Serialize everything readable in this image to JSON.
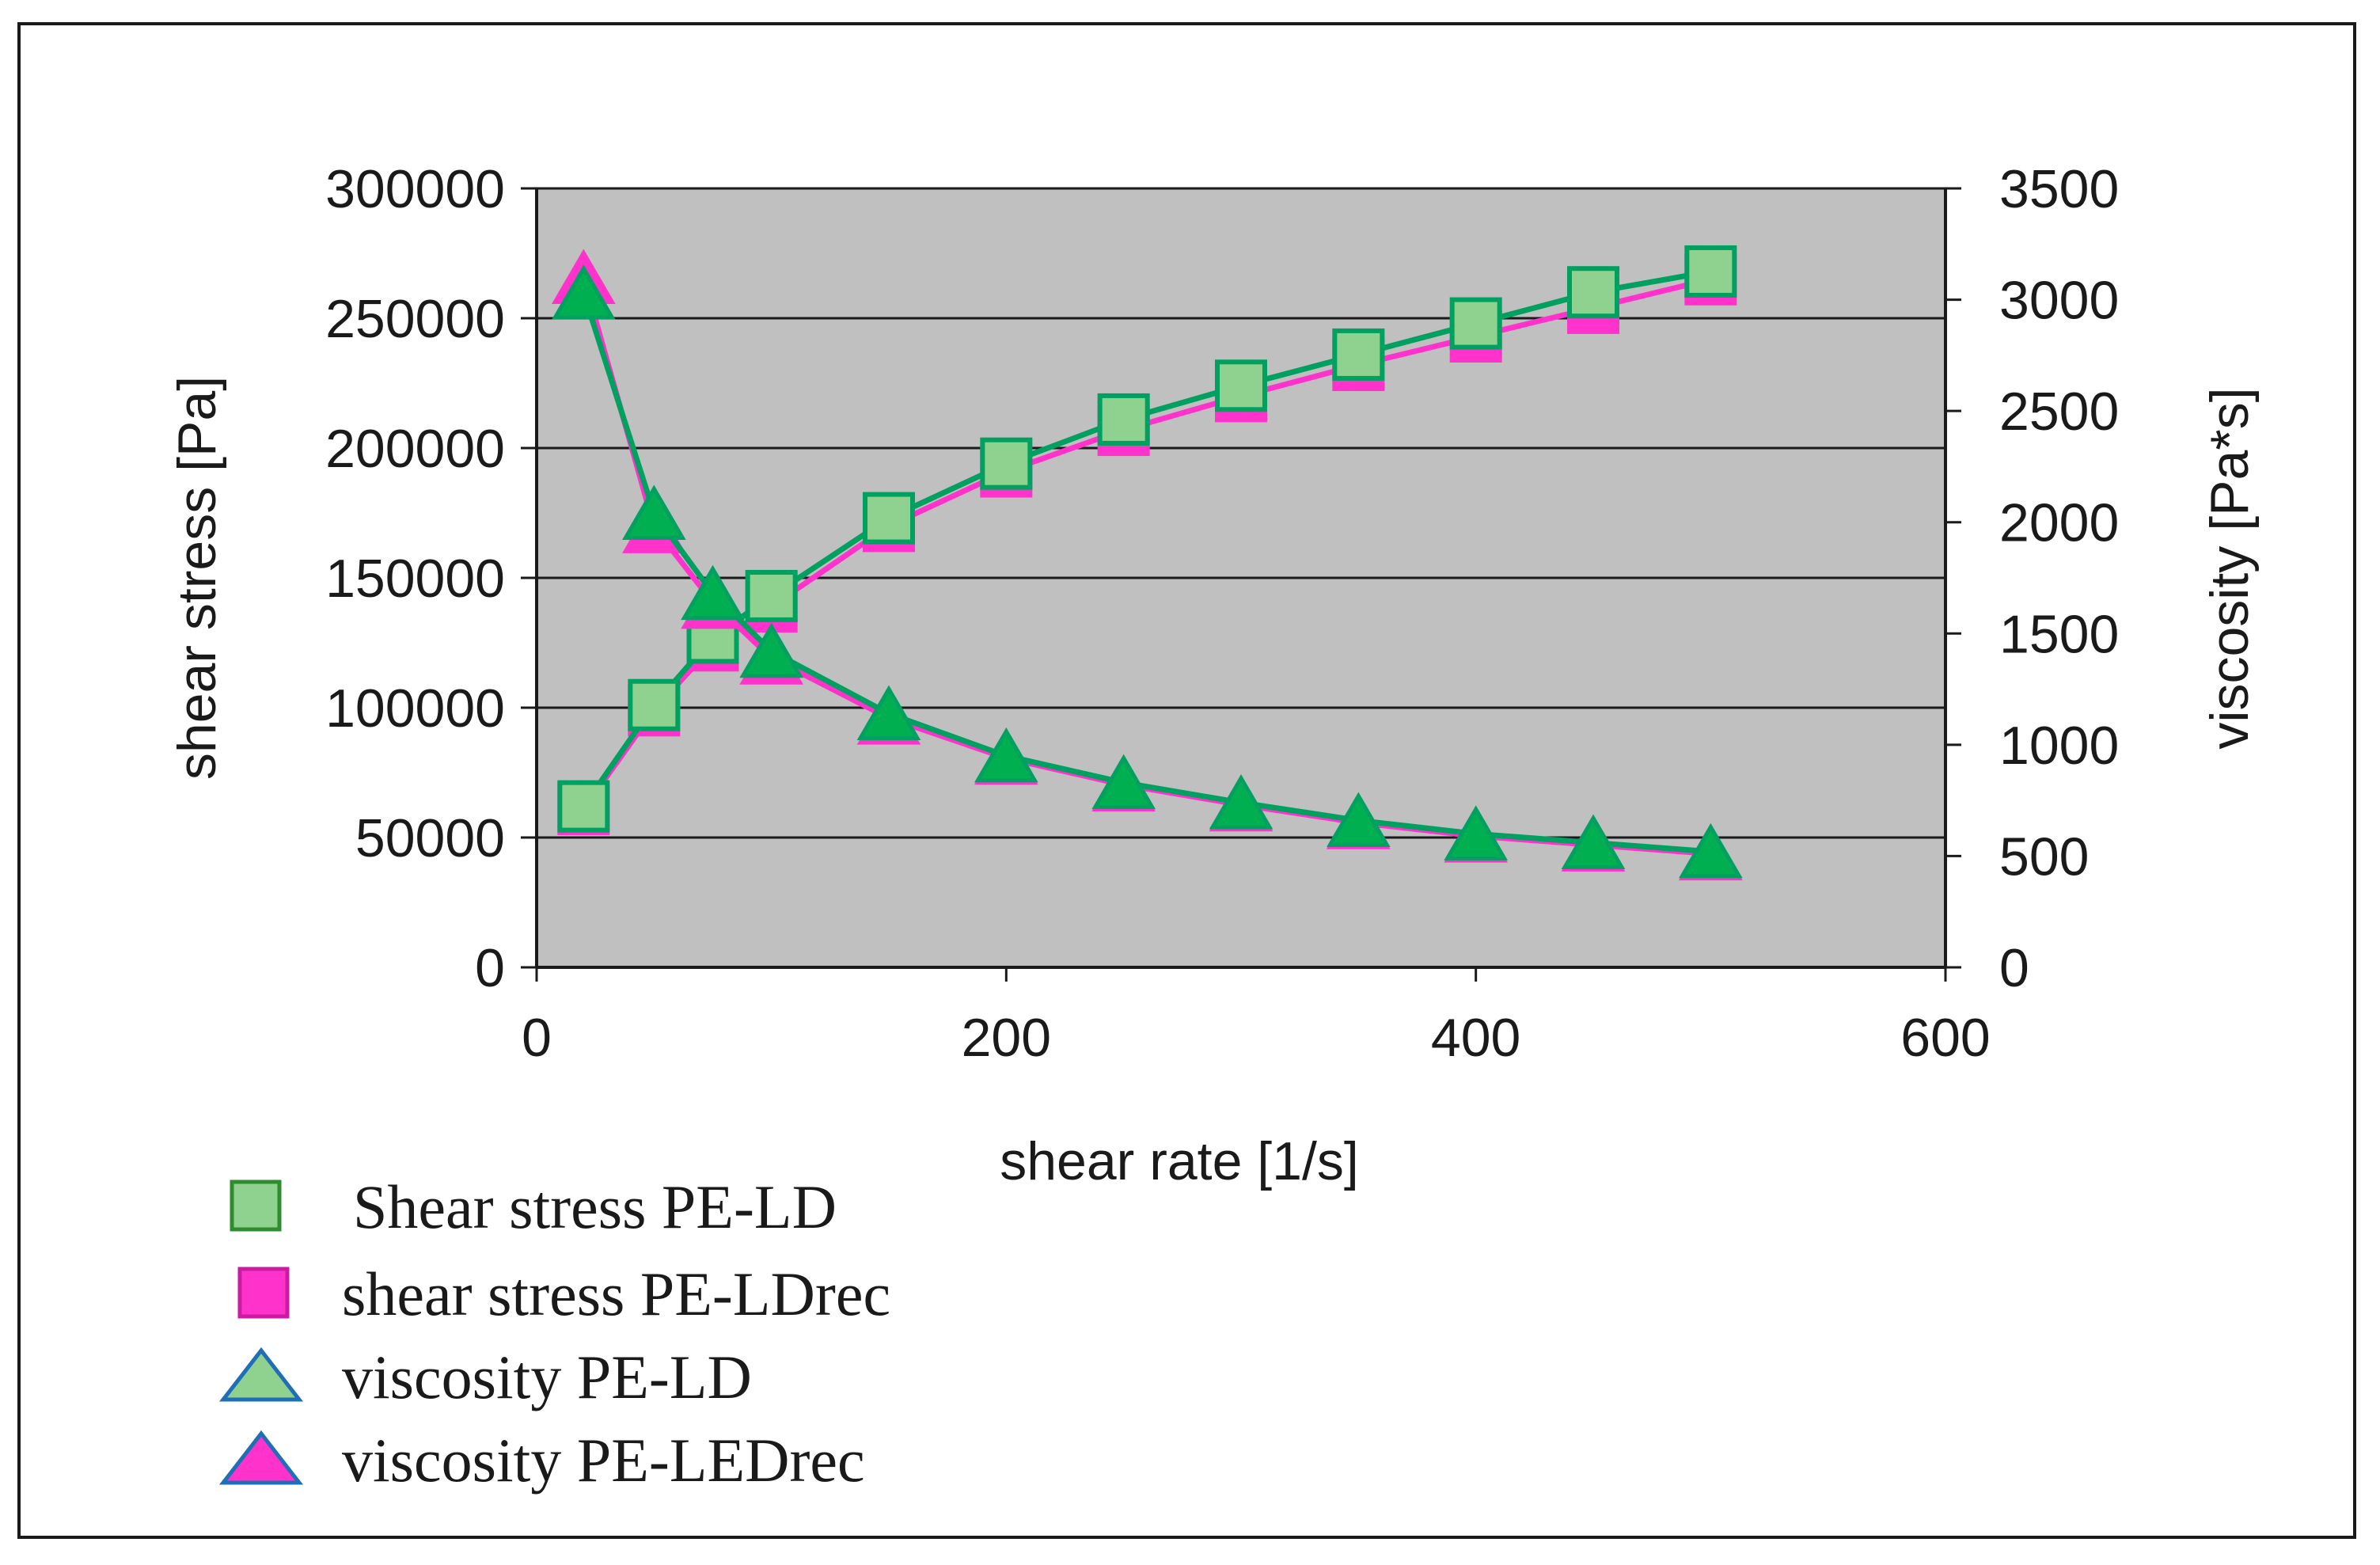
{
  "chart_data": {
    "type": "line",
    "title": "",
    "xlabel": "shear rate [1/s]",
    "ylabel": "shear stress [Pa]",
    "y2label": "viscosity [Pa*s]",
    "xlim": [
      0,
      600
    ],
    "ylim": [
      0,
      300000
    ],
    "y2lim": [
      0,
      3500
    ],
    "xticks": [
      "0",
      "200",
      "400",
      "600"
    ],
    "yticks": [
      "0",
      "50000",
      "100000",
      "150000",
      "200000",
      "250000",
      "300000"
    ],
    "y2ticks": [
      "0",
      "500",
      "1000",
      "1500",
      "2000",
      "2500",
      "3000",
      "3500"
    ],
    "grid": true,
    "plot_background": "#c0c0c0",
    "x": [
      20,
      50,
      75,
      100,
      150,
      200,
      250,
      300,
      350,
      400,
      450,
      500
    ],
    "series": [
      {
        "name": "Shear stress PE-LD",
        "axis": "left",
        "marker": "square",
        "color": "#00a060",
        "fill": "#8fd18f",
        "values": [
          62000,
          101000,
          127000,
          143000,
          173000,
          194000,
          211000,
          224000,
          236000,
          248000,
          260000,
          268000
        ]
      },
      {
        "name": "shear stress PE-LDrec",
        "axis": "left",
        "marker": "square",
        "color": "#ff33cc",
        "fill": "#ff33cc",
        "values": [
          61000,
          99000,
          124000,
          139000,
          170000,
          191000,
          207000,
          220000,
          232000,
          243000,
          254000,
          265000
        ]
      },
      {
        "name": "viscosity PE-LD",
        "axis": "right",
        "marker": "triangle",
        "color": "#00a060",
        "fill": "#00b050",
        "values": [
          3030,
          2040,
          1680,
          1420,
          1140,
          950,
          830,
          740,
          660,
          600,
          560,
          520
        ]
      },
      {
        "name": "viscosity PE-LEDrec",
        "axis": "right",
        "marker": "triangle",
        "color": "#ff33cc",
        "fill": "#ff33cc",
        "values": [
          3100,
          1980,
          1640,
          1390,
          1120,
          940,
          820,
          730,
          650,
          590,
          550,
          510
        ]
      }
    ],
    "legend": {
      "placement": "bottom-left",
      "entries": [
        {
          "label": "Shear stress PE-LD",
          "marker": "square",
          "fill": "#8fd18f",
          "stroke": "#2e8b2e"
        },
        {
          "label": "shear stress PE-LDrec",
          "marker": "square",
          "fill": "#ff33cc",
          "stroke": "#cc1aa3"
        },
        {
          "label": "viscosity PE-LD",
          "marker": "triangle",
          "fill": "#8fd18f",
          "stroke": "#1e6fb5"
        },
        {
          "label": "viscosity PE-LEDrec",
          "marker": "triangle",
          "fill": "#ff33cc",
          "stroke": "#1e6fb5"
        }
      ]
    }
  }
}
